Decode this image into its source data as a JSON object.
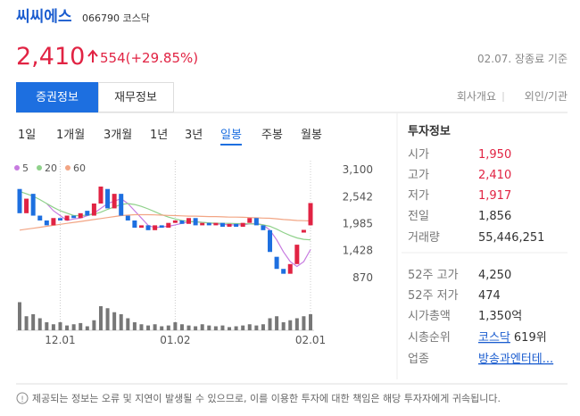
{
  "header": {
    "name": "씨씨에스",
    "code": "066790 코스닥"
  },
  "price": {
    "value": "2,410",
    "change": "554(+29.85%)",
    "as_of": "02.07. 장종료 기준"
  },
  "tabs": [
    "증권정보",
    "재무정보"
  ],
  "links": [
    "회사개요",
    "외인/기관"
  ],
  "periods": [
    "1일",
    "1개월",
    "3개월",
    "1년",
    "3년",
    "일봉",
    "주봉",
    "월봉"
  ],
  "active_period": 5,
  "chart_data": {
    "type": "candlestick",
    "categories": [
      null,
      null,
      null,
      null,
      null,
      null,
      "12.01",
      null,
      null,
      null,
      null,
      null,
      null,
      null,
      null,
      null,
      null,
      null,
      null,
      null,
      null,
      null,
      null,
      "01.02",
      null,
      null,
      null,
      null,
      null,
      null,
      null,
      null,
      null,
      null,
      null,
      null,
      null,
      null,
      null,
      null,
      null,
      null,
      null,
      "02.01"
    ],
    "open": [
      2700,
      2200,
      2600,
      2150,
      2050,
      1950,
      2100,
      2050,
      2150,
      2100,
      2250,
      2150,
      2400,
      2700,
      2300,
      2600,
      2150,
      2050,
      1900,
      1950,
      1850,
      1950,
      1900,
      2000,
      2050,
      1980,
      2100,
      1950,
      2000,
      1950,
      2000,
      1920,
      1980,
      1920,
      2000,
      2100,
      1950,
      1850,
      1300,
      1050,
      950,
      1150,
      1800,
      1950
    ],
    "close": [
      2200,
      2500,
      2150,
      2050,
      1950,
      2100,
      2050,
      2150,
      2100,
      2200,
      2150,
      2400,
      2750,
      2300,
      2600,
      2150,
      2050,
      1900,
      1950,
      1850,
      1950,
      1900,
      2000,
      2050,
      1980,
      2100,
      1950,
      2000,
      1950,
      2000,
      1920,
      1980,
      1920,
      2000,
      2100,
      1950,
      1850,
      1400,
      1050,
      950,
      1150,
      1550,
      1856,
      2410
    ],
    "up_color": "#e12343",
    "down_color": "#1d6fe0",
    "lines": [
      {
        "name": "5",
        "color": "#c77be0",
        "values": [
          null,
          null,
          null,
          null,
          2400,
          2250,
          2150,
          2050,
          2080,
          2100,
          2150,
          2200,
          2300,
          2400,
          2450,
          2500,
          2400,
          2250,
          2100,
          1950,
          1900,
          1920,
          1930,
          1960,
          1990,
          2020,
          2030,
          2010,
          2000,
          1980,
          1970,
          1960,
          1960,
          1960,
          1980,
          1990,
          1960,
          1850,
          1650,
          1400,
          1200,
          1100,
          1200,
          1450
        ]
      },
      {
        "name": "20",
        "color": "#8fd18a",
        "values": [
          2650,
          2600,
          2550,
          2480,
          2400,
          2320,
          2250,
          2200,
          2150,
          2150,
          2160,
          2180,
          2220,
          2280,
          2330,
          2380,
          2400,
          2380,
          2340,
          2290,
          2230,
          2170,
          2120,
          2080,
          2050,
          2030,
          2020,
          2010,
          2000,
          1995,
          1990,
          1990,
          1985,
          1985,
          1980,
          1975,
          1960,
          1930,
          1870,
          1800,
          1740,
          1690,
          1660,
          1650
        ]
      },
      {
        "name": "60",
        "color": "#f2a584",
        "values": [
          1850,
          1870,
          1890,
          1910,
          1930,
          1950,
          1970,
          1990,
          2010,
          2030,
          2050,
          2070,
          2090,
          2110,
          2130,
          2150,
          2160,
          2170,
          2170,
          2170,
          2165,
          2160,
          2155,
          2150,
          2145,
          2140,
          2140,
          2135,
          2130,
          2130,
          2125,
          2120,
          2120,
          2115,
          2110,
          2105,
          2100,
          2095,
          2085,
          2070,
          2060,
          2050,
          2045,
          2040
        ]
      }
    ],
    "volumes": [
      70,
      35,
      40,
      30,
      20,
      15,
      20,
      12,
      15,
      18,
      10,
      25,
      60,
      55,
      45,
      40,
      30,
      20,
      15,
      12,
      15,
      10,
      12,
      20,
      15,
      12,
      10,
      15,
      12,
      10,
      12,
      8,
      10,
      12,
      15,
      12,
      15,
      30,
      35,
      20,
      25,
      30,
      35,
      40
    ],
    "volume_color": "#777777",
    "vlim": [
      0,
      100
    ],
    "ylim": [
      870,
      3100
    ],
    "yticks": [
      {
        "value": 3100,
        "label": "3,100"
      },
      {
        "value": 2542,
        "label": "2,542"
      },
      {
        "value": 1985,
        "label": "1,985"
      },
      {
        "value": 1428,
        "label": "1,428"
      },
      870
    ]
  },
  "info": {
    "title": "투자정보",
    "rows": [
      {
        "label": "시가",
        "value": "1,950",
        "highlight": true
      },
      {
        "label": "고가",
        "value": "2,410",
        "highlight": true
      },
      {
        "label": "저가",
        "value": "1,917",
        "highlight": true
      },
      {
        "label": "전일",
        "value": "1,856"
      },
      {
        "label": "거래량",
        "value": "55,446,251"
      },
      {
        "label": "52주 고가",
        "value": "4,250"
      },
      {
        "label": "52주 저가",
        "value": "474"
      },
      {
        "label": "시가총액",
        "value": "1,350억"
      },
      {
        "label": "시총순위",
        "link": "코스닥",
        "value": "619위"
      },
      {
        "label": "업종",
        "link": "방송과엔터테..."
      }
    ]
  },
  "notice": "제공되는 정보는 오류 및 지연이 발생될 수 있으므로, 이를 이용한 투자에 대한 책임은 해당 투자자에게 귀속됩니다."
}
